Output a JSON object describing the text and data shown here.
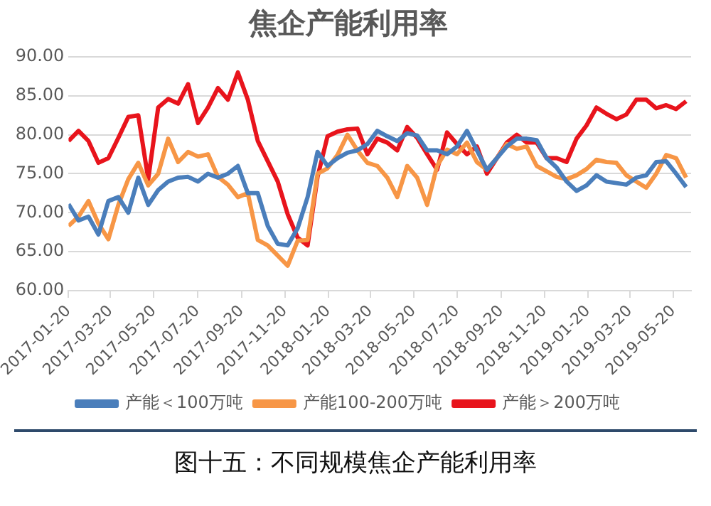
{
  "chart_data": {
    "type": "line",
    "title": "焦企产能利用率",
    "x": [
      "2017-01-20",
      "2017-02-03",
      "2017-02-17",
      "2017-03-03",
      "2017-03-17",
      "2017-03-31",
      "2017-04-14",
      "2017-04-28",
      "2017-05-12",
      "2017-05-26",
      "2017-06-09",
      "2017-06-23",
      "2017-07-07",
      "2017-07-21",
      "2017-08-04",
      "2017-08-18",
      "2017-09-01",
      "2017-09-15",
      "2017-09-29",
      "2017-10-13",
      "2017-10-27",
      "2017-11-10",
      "2017-11-24",
      "2017-12-08",
      "2017-12-22",
      "2018-01-05",
      "2018-01-19",
      "2018-02-02",
      "2018-02-16",
      "2018-03-02",
      "2018-03-16",
      "2018-03-30",
      "2018-04-13",
      "2018-04-27",
      "2018-05-11",
      "2018-05-25",
      "2018-06-08",
      "2018-06-22",
      "2018-07-06",
      "2018-07-20",
      "2018-08-03",
      "2018-08-17",
      "2018-08-31",
      "2018-09-14",
      "2018-09-28",
      "2018-10-12",
      "2018-10-26",
      "2018-11-09",
      "2018-11-23",
      "2018-12-07",
      "2018-12-21",
      "2019-01-04",
      "2019-01-18",
      "2019-02-01",
      "2019-02-15",
      "2019-03-01",
      "2019-03-15",
      "2019-03-29",
      "2019-04-12",
      "2019-04-26",
      "2019-05-10",
      "2019-05-24",
      "2019-06-07"
    ],
    "series": [
      {
        "name": "产能＜100万吨",
        "color": "#4a7ebb",
        "values": [
          71.1,
          69.0,
          69.5,
          67.2,
          71.5,
          72.0,
          70.0,
          74.5,
          71.0,
          72.9,
          74.0,
          74.5,
          74.6,
          74.0,
          75.0,
          74.5,
          75.0,
          76.0,
          72.5,
          72.5,
          68.3,
          66.0,
          65.8,
          68.0,
          72.0,
          77.8,
          76.0,
          77.0,
          77.7,
          78.0,
          78.8,
          80.5,
          79.8,
          79.2,
          80.2,
          79.9,
          78.0,
          78.0,
          77.5,
          78.5,
          80.5,
          78.0,
          75.5,
          77.0,
          78.5,
          79.5,
          79.5,
          79.3,
          77.0,
          75.8,
          74.0,
          72.8,
          73.5,
          74.8,
          74.0,
          73.8,
          73.6,
          74.5,
          74.8,
          76.5,
          76.6,
          75.0,
          73.3
        ]
      },
      {
        "name": "产能100-200万吨",
        "color": "#f79646",
        "values": [
          68.3,
          69.5,
          71.5,
          68.6,
          66.6,
          71.0,
          74.3,
          76.4,
          73.5,
          75.0,
          79.5,
          76.5,
          77.8,
          77.2,
          77.5,
          74.6,
          73.6,
          72.0,
          72.5,
          66.5,
          65.8,
          64.5,
          63.2,
          66.4,
          66.5,
          75.0,
          75.7,
          77.4,
          80.0,
          78.0,
          76.4,
          76.0,
          74.5,
          72.0,
          76.0,
          74.5,
          71.0,
          76.0,
          78.1,
          77.5,
          79.0,
          76.5,
          75.5,
          77.0,
          78.8,
          78.2,
          78.5,
          76.0,
          75.3,
          74.6,
          74.3,
          74.8,
          75.6,
          76.8,
          76.5,
          76.4,
          74.8,
          74.0,
          73.2,
          75.0,
          77.4,
          77.0,
          74.5
        ]
      },
      {
        "name": "产能＞200万吨",
        "color": "#e8141c",
        "values": [
          79.2,
          80.5,
          79.2,
          76.4,
          77.0,
          79.6,
          82.3,
          82.5,
          74.3,
          83.5,
          84.6,
          84.0,
          86.5,
          81.5,
          83.5,
          86.0,
          84.5,
          88.0,
          84.5,
          79.2,
          76.6,
          74.0,
          69.8,
          66.8,
          65.8,
          74.6,
          79.8,
          80.4,
          80.7,
          80.8,
          77.5,
          79.5,
          79.0,
          78.0,
          81.0,
          79.6,
          77.5,
          75.5,
          80.3,
          78.8,
          77.5,
          78.5,
          75.0,
          77.0,
          79.0,
          80.0,
          79.0,
          79.0,
          77.0,
          77.0,
          76.5,
          79.5,
          81.2,
          83.5,
          82.7,
          82.0,
          82.6,
          84.5,
          84.5,
          83.4,
          83.8,
          83.3,
          84.3
        ]
      }
    ],
    "xlim": [
      "2017-01-20",
      "2019-06-14"
    ],
    "xticks": [
      "2017-01-20",
      "2017-03-20",
      "2017-05-20",
      "2017-07-20",
      "2017-09-20",
      "2017-11-20",
      "2018-01-20",
      "2018-03-20",
      "2018-05-20",
      "2018-07-20",
      "2018-09-20",
      "2018-11-20",
      "2019-01-20",
      "2019-03-20",
      "2019-05-20"
    ],
    "ylim": [
      60,
      90
    ],
    "yticks": [
      {
        "value": 60,
        "label": "60.00"
      },
      {
        "value": 65,
        "label": "65.00"
      },
      {
        "value": 70,
        "label": "70.00"
      },
      {
        "value": 75,
        "label": "75.00"
      },
      {
        "value": 80,
        "label": "80.00"
      },
      {
        "value": 85,
        "label": "85.00"
      },
      {
        "value": 90,
        "label": "90.00"
      }
    ],
    "grid": "y",
    "legend": "bottom",
    "marker": "none",
    "line_style": "solid",
    "annotations": [
      "图十五：不同规模焦企产能利用率"
    ]
  }
}
